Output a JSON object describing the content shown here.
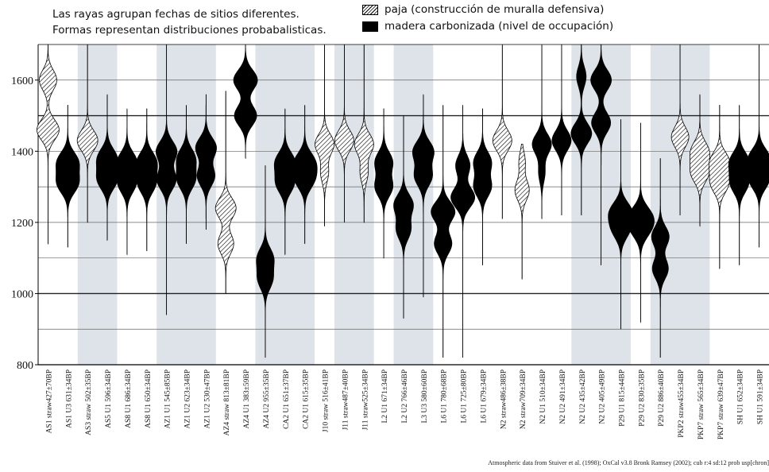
{
  "header": {
    "line1": "Las rayas agrupan fechas de sitios diferentes.",
    "line2": "Formas representan distribuciones probabalisticas."
  },
  "legend": [
    {
      "key": "straw",
      "label": "paja (construcción de muralla defensiva)"
    },
    {
      "key": "wood",
      "label": "madera carbonizada (nivel de occupación)"
    }
  ],
  "footer": "Atmospheric data from Stuiver et al. (1998); OxCal v3.8 Bronk Ramsey (2002); cub r:4 sd:12 prob usp[chron]",
  "chart_data": {
    "type": "range",
    "ylim": [
      800,
      1700
    ],
    "yticks": [
      800,
      1000,
      1200,
      1400,
      1600
    ],
    "gridlines": [
      900,
      1000,
      1100,
      1200,
      1300,
      1400,
      1500,
      1600
    ],
    "bold_gridlines": [
      1000,
      1500
    ],
    "bands": [
      [
        2,
        3
      ],
      [
        6,
        8
      ],
      [
        11,
        13
      ],
      [
        15,
        16
      ],
      [
        18,
        19
      ],
      [
        27,
        29
      ],
      [
        31,
        33
      ]
    ],
    "samples": [
      {
        "label": "AS1 straw427±70BP",
        "type": "straw",
        "range": [
          1140,
          1700
        ],
        "peaks": [
          [
            1600,
            11
          ],
          [
            1460,
            14
          ]
        ]
      },
      {
        "label": "AS1 U3 631±34BP",
        "type": "wood",
        "range": [
          1130,
          1530
        ],
        "peaks": [
          [
            1370,
            13
          ],
          [
            1310,
            13
          ]
        ]
      },
      {
        "label": "AS3 straw 502±35BP",
        "type": "straw",
        "range": [
          1200,
          1700
        ],
        "peaks": [
          [
            1430,
            13
          ]
        ]
      },
      {
        "label": "AS5 U1 596±34BP",
        "type": "wood",
        "range": [
          1150,
          1560
        ],
        "peaks": [
          [
            1380,
            12
          ],
          [
            1320,
            12
          ]
        ]
      },
      {
        "label": "AS8 U1 686±34BP",
        "type": "wood",
        "range": [
          1110,
          1520
        ],
        "peaks": [
          [
            1370,
            12
          ],
          [
            1310,
            11
          ]
        ]
      },
      {
        "label": "AS8 U1 650±34BP",
        "type": "wood",
        "range": [
          1120,
          1520
        ],
        "peaks": [
          [
            1370,
            12
          ],
          [
            1310,
            11
          ]
        ]
      },
      {
        "label": "AZ1 U1 545±85BP",
        "type": "wood",
        "range": [
          940,
          1700
        ],
        "peaks": [
          [
            1400,
            13
          ],
          [
            1320,
            12
          ]
        ]
      },
      {
        "label": "AZ1 U2 623±34BP",
        "type": "wood",
        "range": [
          1140,
          1530
        ],
        "peaks": [
          [
            1380,
            11
          ],
          [
            1320,
            11
          ]
        ]
      },
      {
        "label": "AZ1 U2 530±47BP",
        "type": "wood",
        "range": [
          1180,
          1560
        ],
        "peaks": [
          [
            1410,
            13
          ],
          [
            1330,
            11
          ]
        ]
      },
      {
        "label": "AZ4 straw 813±81BP",
        "type": "straw",
        "range": [
          1000,
          1570
        ],
        "peaks": [
          [
            1240,
            13
          ],
          [
            1140,
            10
          ]
        ]
      },
      {
        "label": "AZ4 U1 383±59BP",
        "type": "wood",
        "range": [
          1380,
          1700
        ],
        "peaks": [
          [
            1600,
            15
          ],
          [
            1500,
            14
          ]
        ]
      },
      {
        "label": "AZ4 U2 955±35BP",
        "type": "wood",
        "range": [
          820,
          1360
        ],
        "peaks": [
          [
            1100,
            10
          ],
          [
            1040,
            9
          ]
        ]
      },
      {
        "label": "CA2 U1 651±37BP",
        "type": "wood",
        "range": [
          1110,
          1520
        ],
        "peaks": [
          [
            1370,
            12
          ],
          [
            1310,
            11
          ]
        ]
      },
      {
        "label": "CA2 U1 615±35BP",
        "type": "wood",
        "range": [
          1140,
          1530
        ],
        "peaks": [
          [
            1370,
            12
          ],
          [
            1320,
            11
          ]
        ]
      },
      {
        "label": "J10 straw 516±41BP",
        "type": "straw",
        "range": [
          1190,
          1700
        ],
        "peaks": [
          [
            1420,
            12
          ],
          [
            1340,
            5
          ]
        ]
      },
      {
        "label": "J11 straw487±40BP",
        "type": "straw",
        "range": [
          1200,
          1700
        ],
        "peaks": [
          [
            1430,
            12
          ]
        ]
      },
      {
        "label": "J11 straw525±34BP",
        "type": "straw",
        "range": [
          1200,
          1700
        ],
        "peaks": [
          [
            1420,
            12
          ],
          [
            1340,
            5
          ]
        ]
      },
      {
        "label": "L2 U1 671±34BP",
        "type": "wood",
        "range": [
          1100,
          1520
        ],
        "peaks": [
          [
            1370,
            11
          ],
          [
            1300,
            11
          ]
        ]
      },
      {
        "label": "L2 U2 766±46BP",
        "type": "wood",
        "range": [
          930,
          1500
        ],
        "peaks": [
          [
            1250,
            12
          ],
          [
            1180,
            9
          ]
        ]
      },
      {
        "label": "L3 U3 580±60BP",
        "type": "wood",
        "range": [
          990,
          1560
        ],
        "peaks": [
          [
            1400,
            13
          ],
          [
            1330,
            11
          ]
        ]
      },
      {
        "label": "L6 U1 780±68BP",
        "type": "wood",
        "range": [
          820,
          1530
        ],
        "peaks": [
          [
            1230,
            15
          ],
          [
            1140,
            11
          ]
        ]
      },
      {
        "label": "L6 U1 725±80BP",
        "type": "wood",
        "range": [
          820,
          1530
        ],
        "peaks": [
          [
            1270,
            15
          ],
          [
            1360,
            9
          ]
        ]
      },
      {
        "label": "L6 U1 679±34BP",
        "type": "wood",
        "range": [
          1080,
          1520
        ],
        "peaks": [
          [
            1370,
            11
          ],
          [
            1300,
            11
          ]
        ]
      },
      {
        "label": "N2 straw486±38BP",
        "type": "straw",
        "range": [
          1210,
          1700
        ],
        "peaks": [
          [
            1430,
            12
          ]
        ]
      },
      {
        "label": "N2 straw709±34BP",
        "type": "straw",
        "range": [
          1040,
          1420
        ],
        "peaks": [
          [
            1290,
            9
          ],
          [
            1370,
            4
          ]
        ]
      },
      {
        "label": "N2 U1 510±34BP",
        "type": "wood",
        "range": [
          1210,
          1700
        ],
        "peaks": [
          [
            1420,
            12
          ],
          [
            1340,
            4
          ]
        ]
      },
      {
        "label": "N2 U2 491±34BP",
        "type": "wood",
        "range": [
          1220,
          1700
        ],
        "peaks": [
          [
            1430,
            12
          ]
        ]
      },
      {
        "label": "N2 U2 435±42BP",
        "type": "wood",
        "range": [
          1220,
          1700
        ],
        "peaks": [
          [
            1450,
            13
          ],
          [
            1610,
            6
          ]
        ]
      },
      {
        "label": "N2 U2 405±49BP",
        "type": "wood",
        "range": [
          1080,
          1700
        ],
        "peaks": [
          [
            1600,
            13
          ],
          [
            1480,
            12
          ]
        ]
      },
      {
        "label": "P29 U1 815±44BP",
        "type": "wood",
        "range": [
          900,
          1490
        ],
        "peaks": [
          [
            1230,
            13
          ],
          [
            1180,
            10
          ]
        ]
      },
      {
        "label": "P29 U2 830±35BP",
        "type": "wood",
        "range": [
          920,
          1480
        ],
        "peaks": [
          [
            1220,
            12
          ],
          [
            1180,
            10
          ]
        ]
      },
      {
        "label": "P29 U2 886±40BP",
        "type": "wood",
        "range": [
          820,
          1380
        ],
        "peaks": [
          [
            1160,
            11
          ],
          [
            1070,
            10
          ]
        ]
      },
      {
        "label": "PKP2 straw455±34BP",
        "type": "straw",
        "range": [
          1220,
          1700
        ],
        "peaks": [
          [
            1440,
            11
          ]
        ]
      },
      {
        "label": "PKP7 straw 565±34BP",
        "type": "straw",
        "range": [
          1190,
          1560
        ],
        "peaks": [
          [
            1400,
            11
          ],
          [
            1340,
            11
          ]
        ]
      },
      {
        "label": "PKP7 straw 639±47BP",
        "type": "straw",
        "range": [
          1070,
          1530
        ],
        "peaks": [
          [
            1370,
            12
          ],
          [
            1310,
            11
          ]
        ]
      },
      {
        "label": "SH U1 652±34BP",
        "type": "wood",
        "range": [
          1080,
          1530
        ],
        "peaks": [
          [
            1370,
            12
          ],
          [
            1310,
            11
          ]
        ]
      },
      {
        "label": "SH U1 591±34BP",
        "type": "wood",
        "range": [
          1130,
          1700
        ],
        "peaks": [
          [
            1380,
            13
          ],
          [
            1320,
            12
          ]
        ]
      }
    ]
  }
}
